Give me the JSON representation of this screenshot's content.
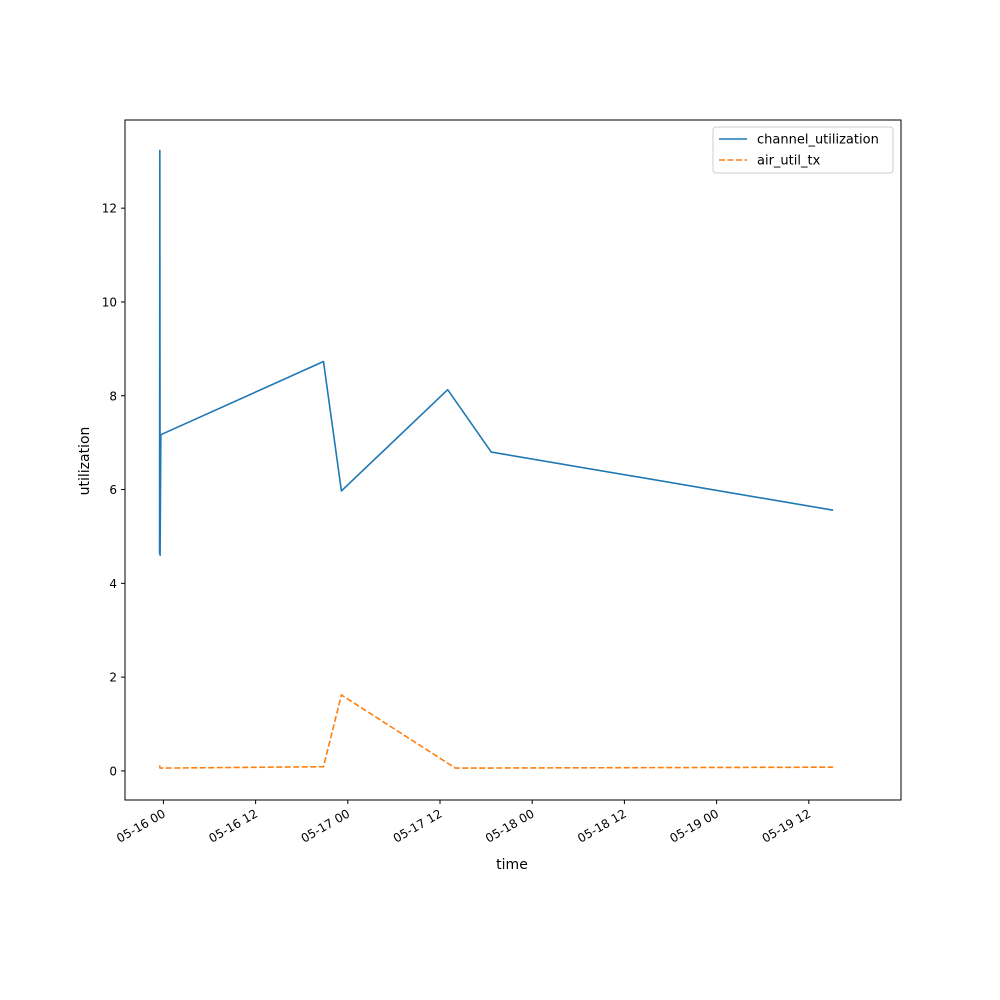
{
  "chart_data": {
    "type": "line",
    "title": "",
    "xlabel": "time",
    "ylabel": "utilization",
    "x_axis_type": "datetime",
    "xlim": [
      "2022-05-15 19:00",
      "2022-05-20 00:00"
    ],
    "ylim": [
      -0.62,
      13.88
    ],
    "grid": false,
    "legend_position": "top-right",
    "x_ticks": [
      {
        "value": "2022-05-16 00:00",
        "label": "05-16 00"
      },
      {
        "value": "2022-05-16 12:00",
        "label": "05-16 12"
      },
      {
        "value": "2022-05-17 00:00",
        "label": "05-17 00"
      },
      {
        "value": "2022-05-17 12:00",
        "label": "05-17 12"
      },
      {
        "value": "2022-05-18 00:00",
        "label": "05-18 00"
      },
      {
        "value": "2022-05-18 12:00",
        "label": "05-18 12"
      },
      {
        "value": "2022-05-19 00:00",
        "label": "05-19 00"
      },
      {
        "value": "2022-05-19 12:00",
        "label": "05-19 12"
      }
    ],
    "y_ticks": [
      {
        "value": 0,
        "label": "0"
      },
      {
        "value": 2,
        "label": "2"
      },
      {
        "value": 4,
        "label": "4"
      },
      {
        "value": 6,
        "label": "6"
      },
      {
        "value": 8,
        "label": "8"
      },
      {
        "value": 10,
        "label": "10"
      },
      {
        "value": 12,
        "label": "12"
      }
    ],
    "series": [
      {
        "name": "channel_utilization",
        "color": "#1f77b4",
        "style": "solid",
        "points": [
          {
            "x": "2022-05-15 23:30",
            "y": 4.63
          },
          {
            "x": "2022-05-15 23:32",
            "y": 13.23
          },
          {
            "x": "2022-05-15 23:34",
            "y": 4.6
          },
          {
            "x": "2022-05-15 23:40",
            "y": 7.17
          },
          {
            "x": "2022-05-16 20:50",
            "y": 8.73
          },
          {
            "x": "2022-05-16 23:10",
            "y": 5.97
          },
          {
            "x": "2022-05-17 13:00",
            "y": 8.13
          },
          {
            "x": "2022-05-17 18:40",
            "y": 6.8
          },
          {
            "x": "2022-05-19 15:10",
            "y": 5.56
          }
        ]
      },
      {
        "name": "air_util_tx",
        "color": "#ff7f0e",
        "style": "dashed",
        "points": [
          {
            "x": "2022-05-15 23:30",
            "y": 0.12
          },
          {
            "x": "2022-05-15 23:34",
            "y": 0.06
          },
          {
            "x": "2022-05-16 20:50",
            "y": 0.09
          },
          {
            "x": "2022-05-16 23:10",
            "y": 1.62
          },
          {
            "x": "2022-05-17 14:00",
            "y": 0.06
          },
          {
            "x": "2022-05-19 15:10",
            "y": 0.08
          }
        ]
      }
    ]
  }
}
